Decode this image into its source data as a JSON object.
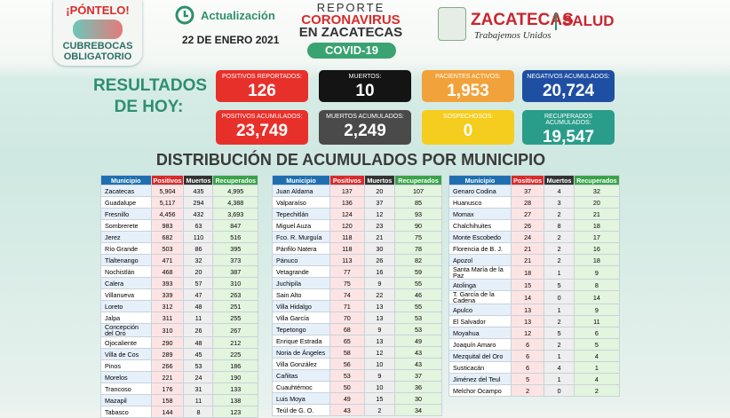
{
  "header": {
    "badge": {
      "title": "¡PÓNTELO!",
      "lines": [
        "CUBREBOCAS",
        "OBLIGATORIO"
      ]
    },
    "update_label": "Actualización",
    "date": "22 DE ENERO 2021",
    "report_title": [
      "REPORTE",
      "CORONAVIRUS",
      "EN ZACATECAS"
    ],
    "pill": "COVID-19",
    "state_logo": {
      "name": "ZACATECAS",
      "slogan": "Trabajemos Unidos"
    },
    "salud": "SALUD"
  },
  "results": {
    "heading": [
      "RESULTADOS",
      "DE HOY:"
    ],
    "boxes": [
      {
        "label": "POSITIVOS REPORTADOS:",
        "value": "126",
        "color": "#e8302b"
      },
      {
        "label": "MUERTOS:",
        "value": "10",
        "color": "#141414"
      },
      {
        "label": "PACIENTES ACTIVOS:",
        "value": "1,953",
        "color": "#f2a23a"
      },
      {
        "label": "NEGATIVOS ACUMULADOS:",
        "value": "20,724",
        "color": "#1f4fa3"
      },
      {
        "label": "POSITIVOS ACUMULADOS:",
        "value": "23,749",
        "color": "#e8302b"
      },
      {
        "label": "MUERTOS ACUMULADOS:",
        "value": "2,249",
        "color": "#4a4a4a"
      },
      {
        "label": "SOSPECHOSOS:",
        "value": "0",
        "color": "#f5cd1e"
      },
      {
        "label": "RECUPERADOS ACUMULADOS:",
        "value": "19,547",
        "color": "#2a9d8a"
      }
    ]
  },
  "section_title": "DISTRIBUCIÓN DE ACUMULADOS POR MUNICIPIO",
  "tables": [
    {
      "header": [
        "Municipio",
        "Positivos",
        "Muertos",
        "Recuperados"
      ],
      "rows": [
        [
          "Zacatecas",
          "5,904",
          "435",
          "4,995"
        ],
        [
          "Guadalupe",
          "5,117",
          "294",
          "4,388"
        ],
        [
          "Fresnillo",
          "4,456",
          "432",
          "3,693"
        ],
        [
          "Sombrerete",
          "983",
          "63",
          "847"
        ],
        [
          "Jerez",
          "682",
          "110",
          "516"
        ],
        [
          "Río Grande",
          "503",
          "86",
          "395"
        ],
        [
          "Tlaltenango",
          "471",
          "32",
          "373"
        ],
        [
          "Nochistlán",
          "468",
          "20",
          "387"
        ],
        [
          "Calera",
          "393",
          "57",
          "310"
        ],
        [
          "Villanueva",
          "339",
          "47",
          "263"
        ],
        [
          "Loreto",
          "312",
          "48",
          "251"
        ],
        [
          "Jalpa",
          "311",
          "11",
          "255"
        ],
        [
          "Concepción del Oro",
          "310",
          "26",
          "267"
        ],
        [
          "Ojocaliente",
          "290",
          "48",
          "212"
        ],
        [
          "Villa de Cos",
          "289",
          "45",
          "225"
        ],
        [
          "Pinos",
          "266",
          "53",
          "186"
        ],
        [
          "Morelos",
          "221",
          "24",
          "190"
        ],
        [
          "Trancoso",
          "176",
          "31",
          "133"
        ],
        [
          "Mazapil",
          "158",
          "11",
          "138"
        ],
        [
          "Tabasco",
          "144",
          "8",
          "123"
        ]
      ]
    },
    {
      "header": [
        "Municipio",
        "Positivos",
        "Muertos",
        "Recuperados"
      ],
      "rows": [
        [
          "Juan Aldama",
          "137",
          "20",
          "107"
        ],
        [
          "Valparaíso",
          "136",
          "37",
          "85"
        ],
        [
          "Tepechitlán",
          "124",
          "12",
          "93"
        ],
        [
          "Miguel Auza",
          "120",
          "23",
          "90"
        ],
        [
          "Fco. R. Murguía",
          "118",
          "21",
          "75"
        ],
        [
          "Pánfilo Natera",
          "118",
          "30",
          "78"
        ],
        [
          "Pánuco",
          "113",
          "26",
          "82"
        ],
        [
          "Vetagrande",
          "77",
          "16",
          "59"
        ],
        [
          "Juchipila",
          "75",
          "9",
          "55"
        ],
        [
          "Sain Alto",
          "74",
          "22",
          "46"
        ],
        [
          "Villa Hidalgo",
          "71",
          "13",
          "55"
        ],
        [
          "Villa García",
          "70",
          "13",
          "53"
        ],
        [
          "Tepetongo",
          "68",
          "9",
          "53"
        ],
        [
          "Enrique Estrada",
          "65",
          "13",
          "49"
        ],
        [
          "Noria de Ángeles",
          "58",
          "12",
          "43"
        ],
        [
          "Villa González",
          "56",
          "10",
          "43"
        ],
        [
          "Cañitas",
          "53",
          "9",
          "37"
        ],
        [
          "Cuauhtémoc",
          "50",
          "10",
          "36"
        ],
        [
          "Luis Moya",
          "49",
          "15",
          "30"
        ],
        [
          "Teúl de G. O.",
          "43",
          "2",
          "34"
        ]
      ]
    },
    {
      "header": [
        "Municipio",
        "Positivos",
        "Muertos",
        "Recuperados"
      ],
      "rows": [
        [
          "Genaro Codina",
          "37",
          "4",
          "32"
        ],
        [
          "Huanusco",
          "28",
          "3",
          "20"
        ],
        [
          "Momax",
          "27",
          "2",
          "21"
        ],
        [
          "Chalchihuites",
          "26",
          "8",
          "18"
        ],
        [
          "Monte Escobedo",
          "24",
          "2",
          "17"
        ],
        [
          "Florencia de B. J.",
          "21",
          "2",
          "16"
        ],
        [
          "Apozol",
          "21",
          "2",
          "18"
        ],
        [
          "Santa María de la Paz",
          "18",
          "1",
          "9"
        ],
        [
          "Atolinga",
          "15",
          "5",
          "8"
        ],
        [
          "T. García de la Cadena",
          "14",
          "0",
          "14"
        ],
        [
          "Apulco",
          "13",
          "1",
          "9"
        ],
        [
          "El Salvador",
          "13",
          "2",
          "11"
        ],
        [
          "Moyahua",
          "12",
          "5",
          "6"
        ],
        [
          "Joaquín Amaro",
          "6",
          "2",
          "5"
        ],
        [
          "Mezquital del Oro",
          "6",
          "1",
          "4"
        ],
        [
          "Susticacán",
          "6",
          "4",
          "1"
        ],
        [
          "Jiménez del Teul",
          "5",
          "1",
          "4"
        ],
        [
          "Melchor Ocampo",
          "2",
          "0",
          "2"
        ]
      ]
    }
  ]
}
